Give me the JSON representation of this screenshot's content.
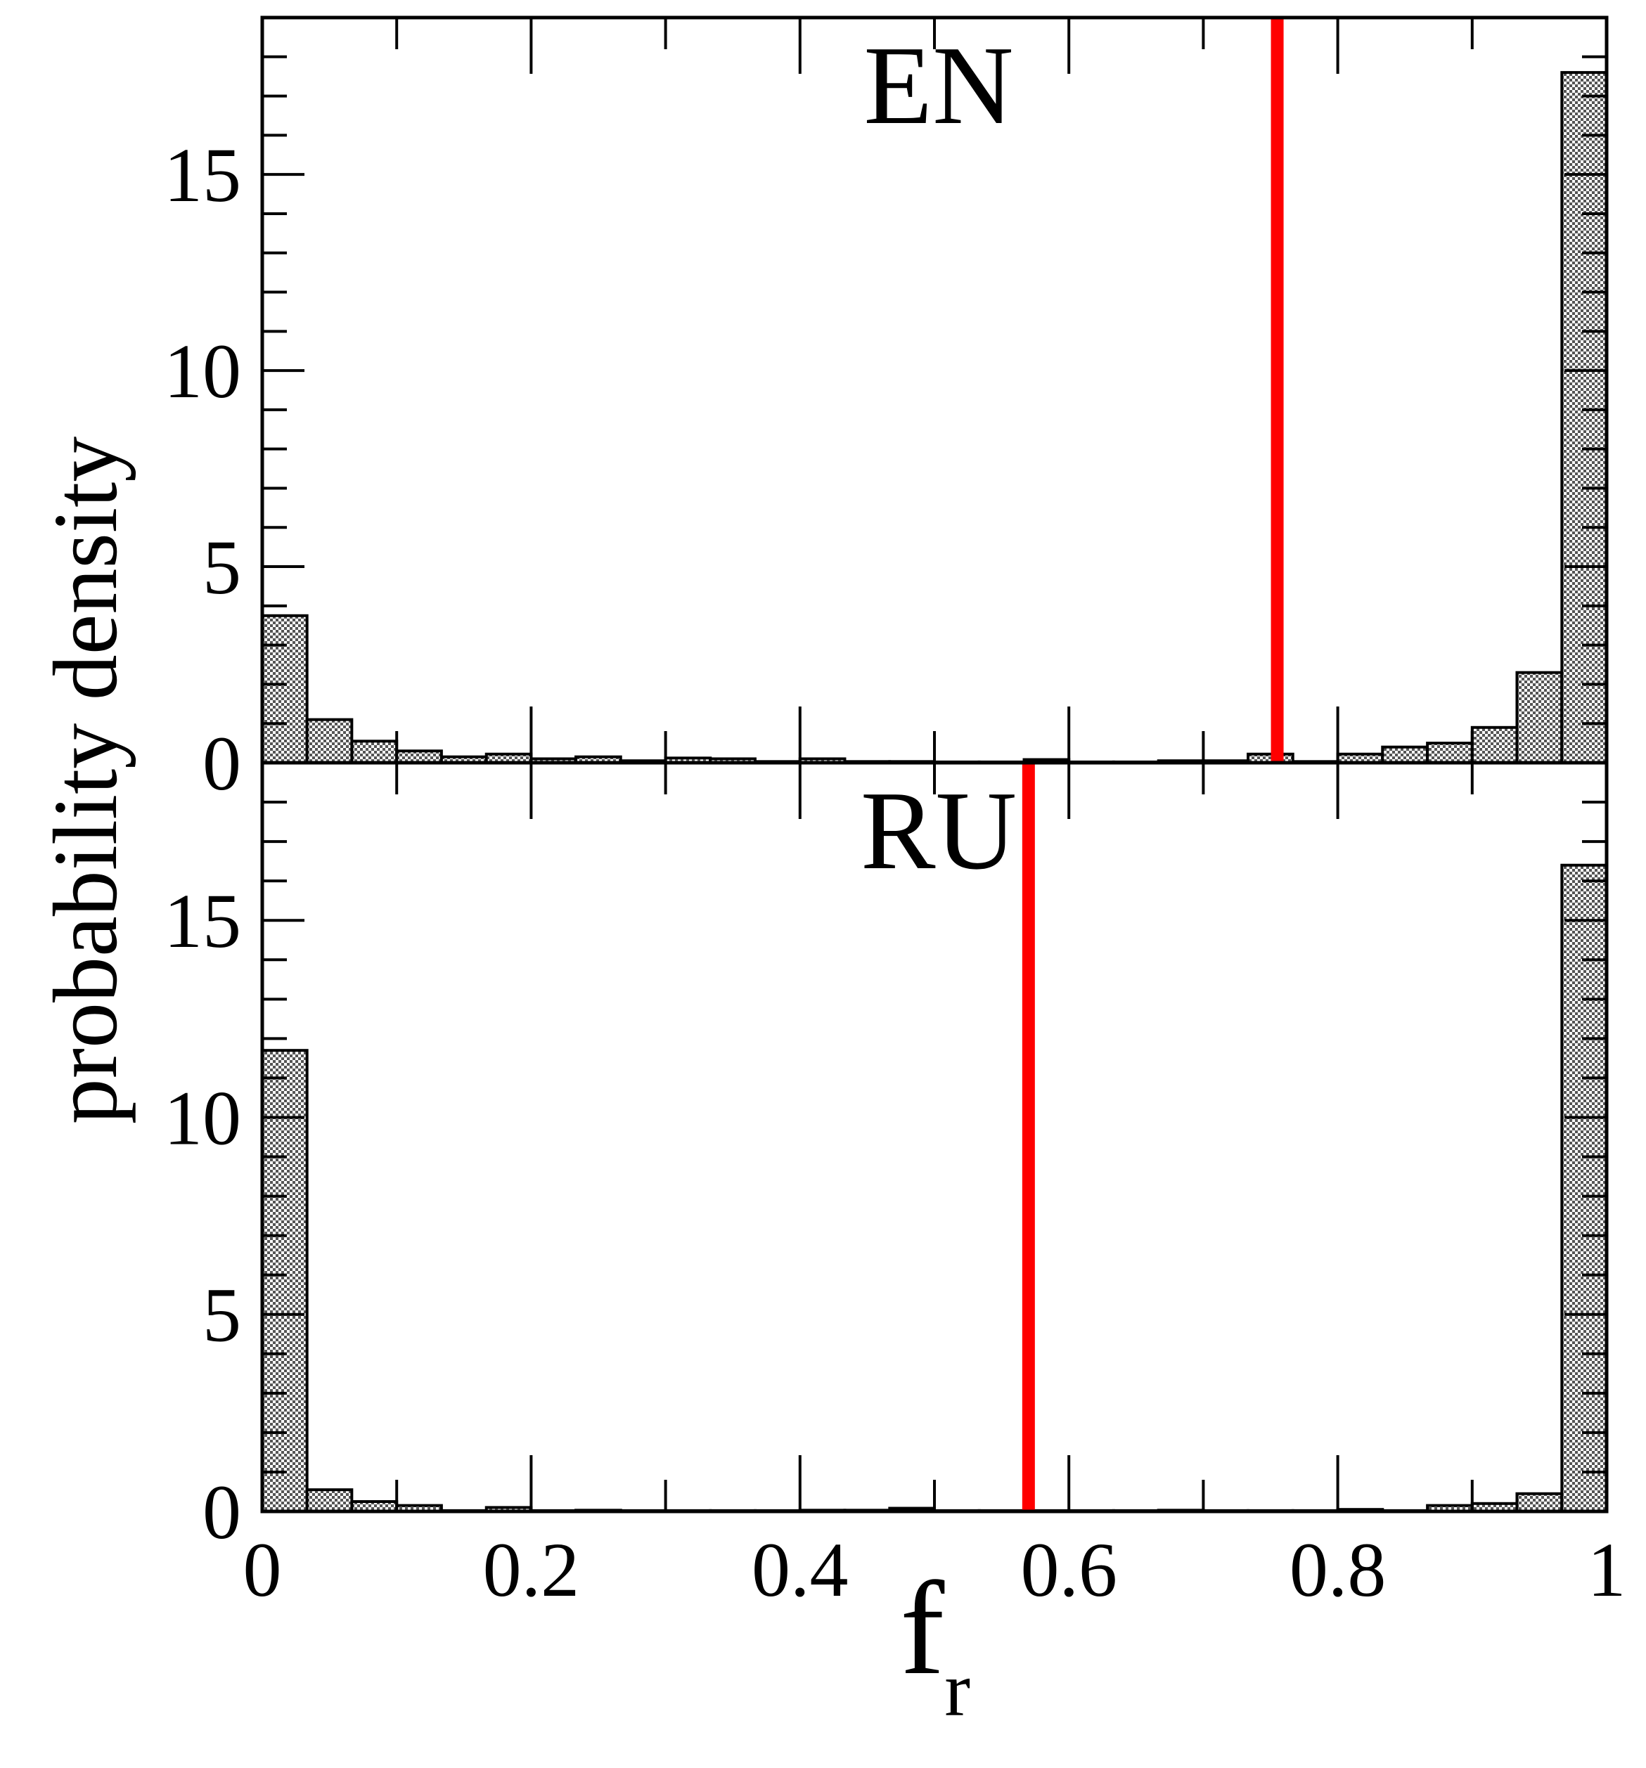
{
  "chart_data": [
    {
      "type": "bar",
      "panel_label": "EN",
      "ylabel": "probability density",
      "xlim": [
        0,
        1
      ],
      "ylim": [
        0,
        19
      ],
      "x_ticks": [
        "0",
        "0.2",
        "0.4",
        "0.6",
        "0.8",
        "1"
      ],
      "y_ticks": [
        "0",
        "5",
        "10",
        "15"
      ],
      "bin_width": 0.0333,
      "bin_starts": [
        0,
        0.0333,
        0.0667,
        0.1,
        0.1333,
        0.1667,
        0.2,
        0.2333,
        0.2667,
        0.3,
        0.3333,
        0.3667,
        0.4,
        0.4333,
        0.4667,
        0.5,
        0.5333,
        0.5667,
        0.6,
        0.6333,
        0.6667,
        0.7,
        0.7333,
        0.7667,
        0.8,
        0.8333,
        0.8667,
        0.9,
        0.9333,
        0.9667
      ],
      "values": [
        3.75,
        1.1,
        0.55,
        0.3,
        0.15,
        0.22,
        0.1,
        0.15,
        0.05,
        0.12,
        0.1,
        0.03,
        0.1,
        0.03,
        0.03,
        0.02,
        0.02,
        0.08,
        0.02,
        0.02,
        0.05,
        0.05,
        0.22,
        0.03,
        0.22,
        0.4,
        0.5,
        0.9,
        2.3,
        17.6
      ],
      "vline_x": 0.755,
      "vline_color": "#ff0000",
      "bar_pattern": "checkered gray",
      "grid": false
    },
    {
      "type": "bar",
      "panel_label": "RU",
      "xlabel": "f",
      "xlabel_subscript": "r",
      "xlim": [
        0,
        1
      ],
      "ylim": [
        0,
        19
      ],
      "x_ticks": [
        "0",
        "0.2",
        "0.4",
        "0.6",
        "0.8",
        "1"
      ],
      "y_ticks": [
        "0",
        "5",
        "10",
        "15"
      ],
      "bin_width": 0.0333,
      "bin_starts": [
        0,
        0.0333,
        0.0667,
        0.1,
        0.1333,
        0.1667,
        0.2,
        0.2333,
        0.2667,
        0.3,
        0.3333,
        0.3667,
        0.4,
        0.4333,
        0.4667,
        0.5,
        0.5333,
        0.5667,
        0.6,
        0.6333,
        0.6667,
        0.7,
        0.7333,
        0.7667,
        0.8,
        0.8333,
        0.8667,
        0.9,
        0.9333,
        0.9667
      ],
      "values": [
        11.7,
        0.55,
        0.25,
        0.15,
        0.02,
        0.1,
        0.02,
        0.03,
        0.02,
        0.02,
        0.02,
        0.02,
        0.03,
        0.03,
        0.08,
        0.02,
        0.02,
        0.02,
        0.02,
        0.02,
        0.03,
        0.02,
        0.02,
        0.02,
        0.05,
        0.02,
        0.15,
        0.2,
        0.45,
        16.4
      ],
      "vline_x": 0.57,
      "vline_color": "#ff0000",
      "bar_pattern": "checkered gray",
      "grid": false
    }
  ]
}
